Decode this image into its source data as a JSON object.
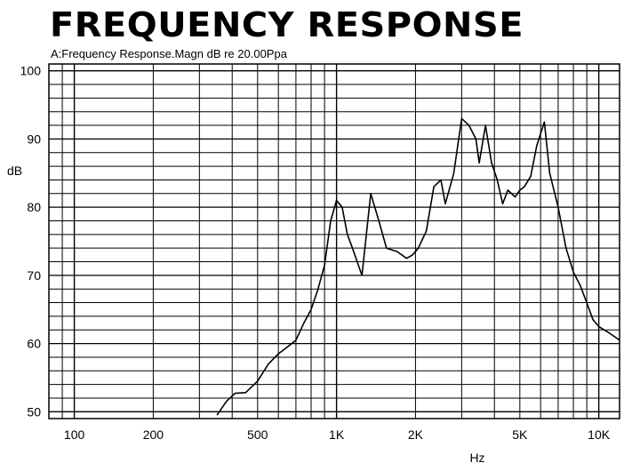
{
  "title": "FREQUENCY RESPONSE",
  "subtitle": "A:Frequency Response.Magn dB re 20.00Ppa",
  "chart_data": {
    "type": "line",
    "title": "FREQUENCY RESPONSE",
    "subtitle": "A:Frequency Response.Magn dB re 20.00Ppa",
    "xlabel": "Hz",
    "ylabel": "dB",
    "xscale": "log",
    "xlim": [
      80,
      12000
    ],
    "ylim": [
      49,
      101
    ],
    "grid": true,
    "x_ticks": [
      {
        "value": 100,
        "label": "100"
      },
      {
        "value": 200,
        "label": "200"
      },
      {
        "value": 500,
        "label": "500"
      },
      {
        "value": 1000,
        "label": "1K"
      },
      {
        "value": 2000,
        "label": "2K"
      },
      {
        "value": 5000,
        "label": "5K"
      },
      {
        "value": 10000,
        "label": "10K"
      }
    ],
    "y_ticks": [
      {
        "value": 50,
        "label": "50"
      },
      {
        "value": 60,
        "label": "60"
      },
      {
        "value": 70,
        "label": "70"
      },
      {
        "value": 80,
        "label": "80"
      },
      {
        "value": 90,
        "label": "90"
      },
      {
        "value": 100,
        "label": "100"
      }
    ],
    "series": [
      {
        "x": [
          350,
          380,
          410,
          450,
          500,
          550,
          600,
          650,
          700,
          750,
          800,
          850,
          900,
          950,
          1000,
          1050,
          1100,
          1150,
          1250,
          1350,
          1450,
          1550,
          1700,
          1850,
          1950,
          2050,
          2200,
          2350,
          2500,
          2600,
          2800,
          3000,
          3200,
          3400,
          3500,
          3700,
          3900,
          4100,
          4300,
          4500,
          4800,
          5000,
          5200,
          5500,
          5800,
          6200,
          6500,
          7000,
          7500,
          8000,
          8500,
          9000,
          9500,
          10000,
          10500,
          11000,
          11500,
          12000
        ],
        "y": [
          49.5,
          51.5,
          52.7,
          52.8,
          54.5,
          57.0,
          58.5,
          59.5,
          60.5,
          63.0,
          65.0,
          68.0,
          71.5,
          78.0,
          81.0,
          80.0,
          76.0,
          74.0,
          70.0,
          82.0,
          78.0,
          74.0,
          73.5,
          72.5,
          73.0,
          74.0,
          76.5,
          83.0,
          84.0,
          80.5,
          85.0,
          93.0,
          92.0,
          90.0,
          86.5,
          92.0,
          86.5,
          84.0,
          80.5,
          82.5,
          81.5,
          82.5,
          83.0,
          84.5,
          89.0,
          92.5,
          85.0,
          80.0,
          74.0,
          70.5,
          68.5,
          66.0,
          63.5,
          62.5,
          62.0,
          61.5,
          61.0,
          60.5
        ]
      }
    ]
  }
}
